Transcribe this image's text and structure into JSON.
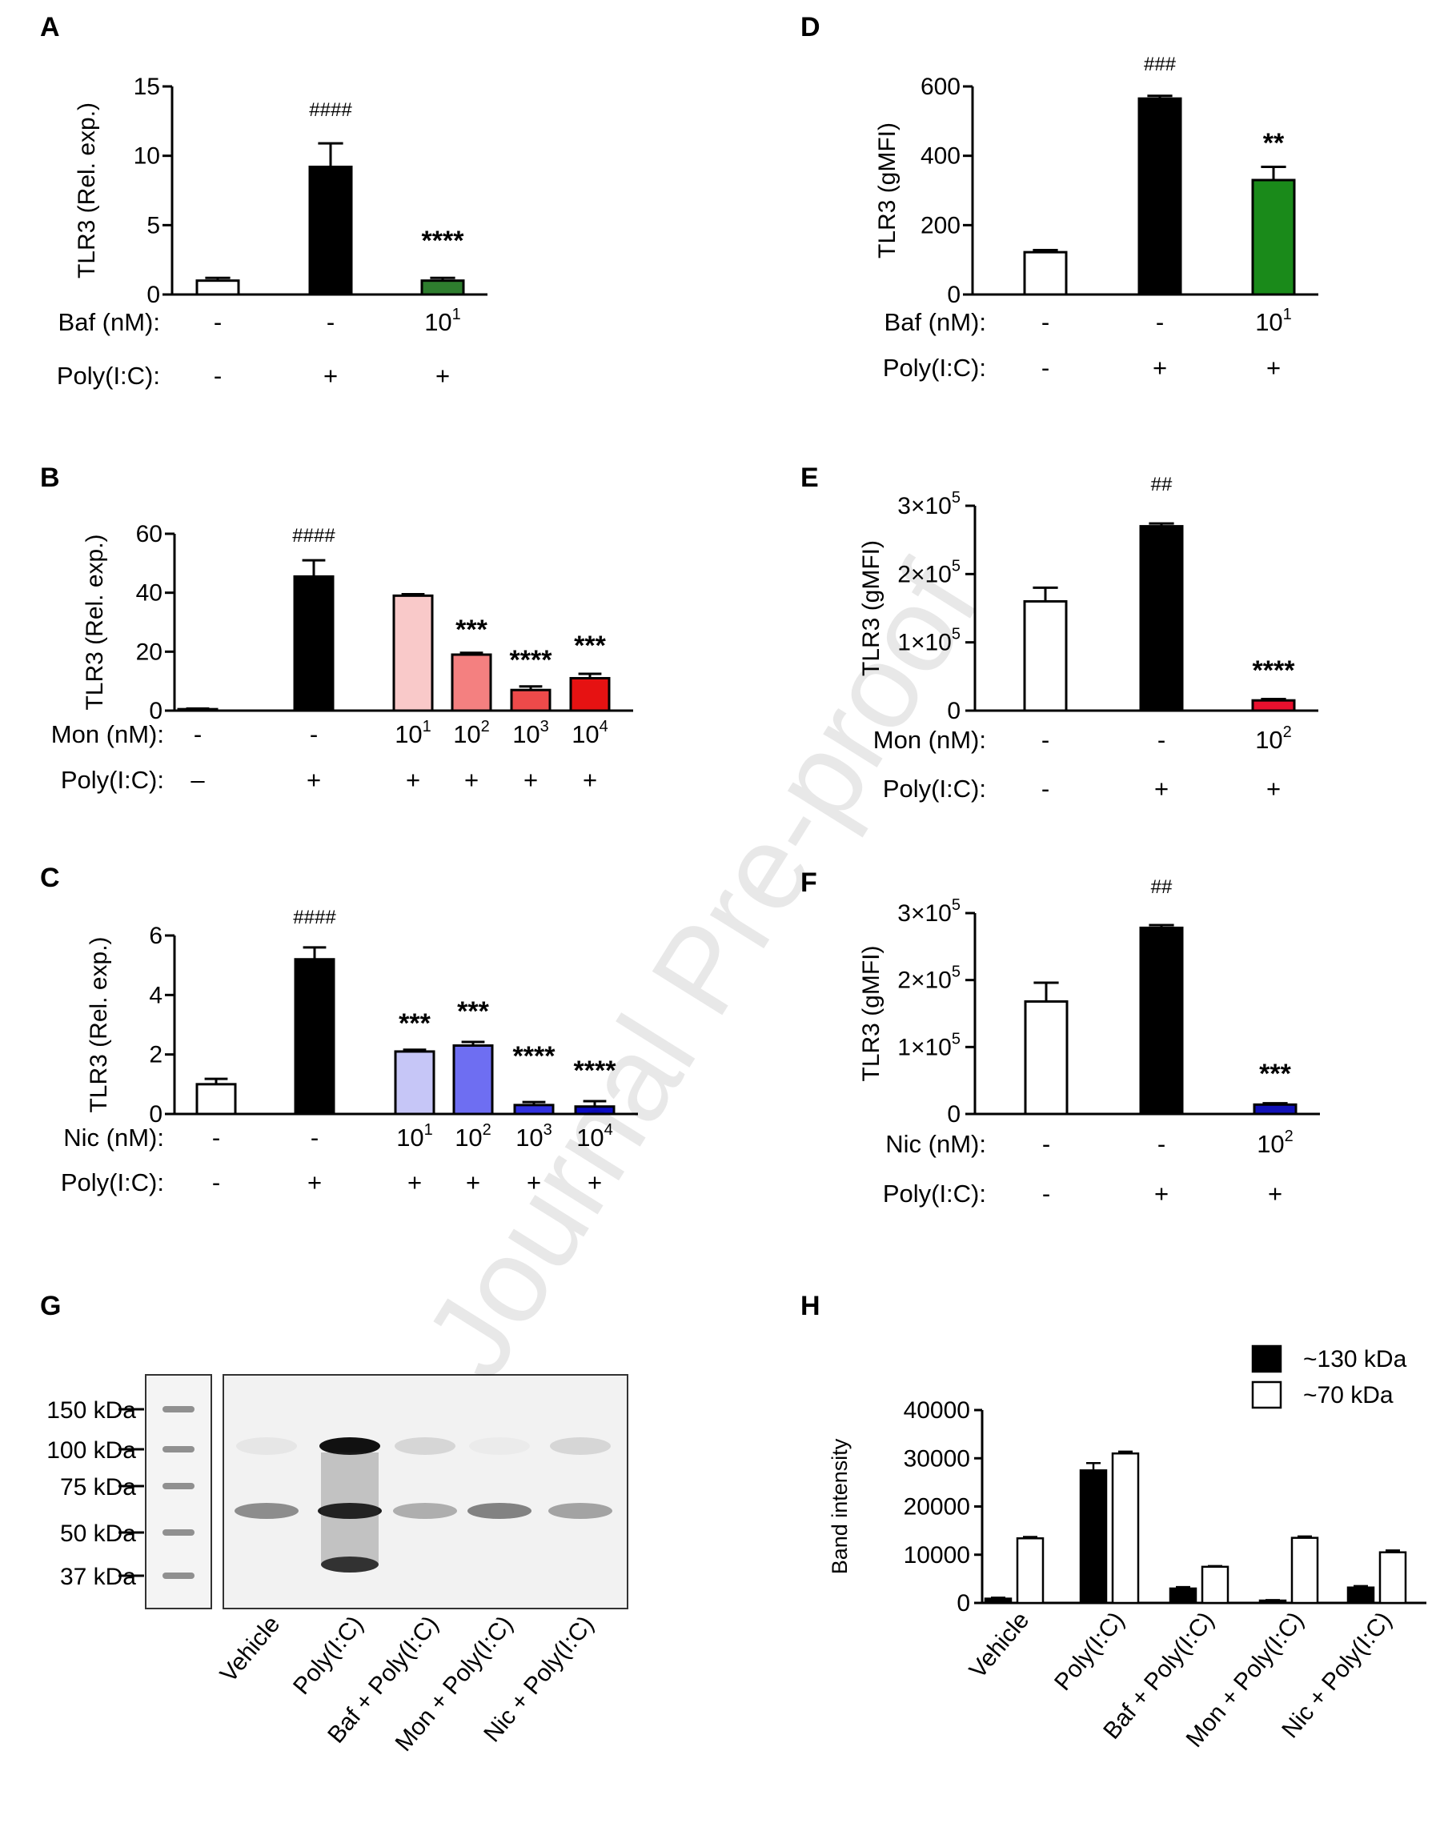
{
  "watermark": "Journal Pre-proof",
  "chart_data": [
    {
      "panel": "A",
      "type": "bar",
      "ylabel": "TLR3 (Rel. exp.)",
      "ylim": [
        0,
        15
      ],
      "yticks": [
        0,
        5,
        10,
        15
      ],
      "values": [
        1.0,
        9.2,
        1.0
      ],
      "errors": [
        0.2,
        1.7,
        0.2
      ],
      "colors": [
        "#ffffff",
        "#000000",
        "#2e7d2e"
      ],
      "annotations": [
        "",
        "####",
        "****"
      ],
      "row_labels": [
        "Baf (nM):",
        "Poly(I:C):"
      ],
      "rows": [
        [
          "-",
          "-",
          "10^1"
        ],
        [
          "-",
          "+",
          "+"
        ]
      ]
    },
    {
      "panel": "B",
      "type": "bar",
      "ylabel": "TLR3 (Rel. exp.)",
      "ylim": [
        0,
        60
      ],
      "yticks": [
        0,
        20,
        40,
        60
      ],
      "values": [
        0.5,
        45.5,
        39,
        19,
        7,
        11
      ],
      "errors": [
        0.2,
        5.5,
        0.5,
        0.6,
        1.2,
        1.5
      ],
      "colors": [
        "#ffffff",
        "#000000",
        "#f9c9c9",
        "#f48080",
        "#ee4a4a",
        "#e61212"
      ],
      "annotations": [
        "",
        "####",
        "",
        "***",
        "****",
        "***"
      ],
      "row_labels": [
        "Mon (nM):",
        "Poly(I:C):"
      ],
      "rows": [
        [
          "-",
          "-",
          "10^1",
          "10^2",
          "10^3",
          "10^4"
        ],
        [
          "–",
          "+",
          "+",
          "+",
          "+",
          "+"
        ]
      ]
    },
    {
      "panel": "C",
      "type": "bar",
      "ylabel": "TLR3 (Rel. exp.)",
      "ylim": [
        0,
        6
      ],
      "yticks": [
        0,
        2,
        4,
        6
      ],
      "values": [
        1.0,
        5.2,
        2.1,
        2.3,
        0.3,
        0.25
      ],
      "errors": [
        0.18,
        0.4,
        0.06,
        0.12,
        0.1,
        0.18
      ],
      "colors": [
        "#ffffff",
        "#000000",
        "#c6c6f7",
        "#6e6ef2",
        "#3232e0",
        "#0c0cc4"
      ],
      "annotations": [
        "",
        "####",
        "***",
        "***",
        "****",
        "****"
      ],
      "row_labels": [
        "Nic (nM):",
        "Poly(I:C):"
      ],
      "rows": [
        [
          "-",
          "-",
          "10^1",
          "10^2",
          "10^3",
          "10^4"
        ],
        [
          "-",
          "+",
          "+",
          "+",
          "+",
          "+"
        ]
      ]
    },
    {
      "panel": "D",
      "type": "bar",
      "ylabel": "TLR3 (gMFI)",
      "ylim": [
        0,
        600
      ],
      "yticks": [
        0,
        200,
        400,
        600
      ],
      "values": [
        122,
        565,
        330
      ],
      "errors": [
        6,
        8,
        38
      ],
      "colors": [
        "#ffffff",
        "#000000",
        "#1a8a1a"
      ],
      "annotations": [
        "",
        "###",
        "**"
      ],
      "row_labels": [
        "Baf (nM):",
        "Poly(I:C):"
      ],
      "rows": [
        [
          "-",
          "-",
          "10^1"
        ],
        [
          "-",
          "+",
          "+"
        ]
      ]
    },
    {
      "panel": "E",
      "type": "bar",
      "ylabel": "TLR3 (gMFI)",
      "ylim": [
        0,
        300000
      ],
      "yticks": [
        0,
        100000,
        200000,
        300000
      ],
      "ytick_labels": [
        "0",
        "1x10^5",
        "2x10^5",
        "3x10^5"
      ],
      "values": [
        160000,
        270000,
        15000
      ],
      "errors": [
        20000,
        4000,
        2000
      ],
      "colors": [
        "#ffffff",
        "#000000",
        "#e8102e"
      ],
      "annotations": [
        "",
        "##",
        "****"
      ],
      "row_labels": [
        "Mon (nM):",
        "Poly(I:C):"
      ],
      "rows": [
        [
          "-",
          "-",
          "10^2"
        ],
        [
          "-",
          "+",
          "+"
        ]
      ]
    },
    {
      "panel": "F",
      "type": "bar",
      "ylabel": "TLR3 (gMFI)",
      "ylim": [
        0,
        300000
      ],
      "yticks": [
        0,
        100000,
        200000,
        300000
      ],
      "ytick_labels": [
        "0",
        "1x10^5",
        "2x10^5",
        "3x10^5"
      ],
      "values": [
        168000,
        278000,
        14000
      ],
      "errors": [
        28000,
        4000,
        2000
      ],
      "colors": [
        "#ffffff",
        "#000000",
        "#1212b8"
      ],
      "annotations": [
        "",
        "##",
        "***"
      ],
      "row_labels": [
        "Nic (nM):",
        "Poly(I:C):"
      ],
      "rows": [
        [
          "-",
          "-",
          "10^2"
        ],
        [
          "-",
          "+",
          "+"
        ]
      ]
    },
    {
      "panel": "H",
      "type": "bar",
      "ylabel": "Band intensity",
      "ylim": [
        0,
        40000
      ],
      "yticks": [
        0,
        10000,
        20000,
        30000,
        40000
      ],
      "categories": [
        "Vehicle",
        "Poly(I:C)",
        "Baf + Poly(I:C)",
        "Mon + Poly(I:C)",
        "Nic + Poly(I:C)"
      ],
      "series": [
        {
          "name": "~130 kDa",
          "color": "#000000",
          "values": [
            900,
            27500,
            3000,
            500,
            3200
          ],
          "errors": [
            200,
            1500,
            300,
            100,
            300
          ]
        },
        {
          "name": "~70 kDa",
          "color": "#ffffff",
          "values": [
            13400,
            31000,
            7500,
            13500,
            10500
          ],
          "errors": [
            300,
            400,
            150,
            300,
            400
          ]
        }
      ]
    }
  ],
  "blot": {
    "panel": "G",
    "markers": [
      "150 kDa",
      "100 kDa",
      "75 kDa",
      "50 kDa",
      "37 kDa"
    ],
    "lanes": [
      "Vehicle",
      "Poly(I:C)",
      "Baf + Poly(I:C)",
      "Mon + Poly(I:C)",
      "Nic + Poly(I:C)"
    ],
    "band_130_intensity": [
      0.05,
      1.0,
      0.12,
      0.03,
      0.12
    ],
    "band_70_intensity": [
      0.45,
      0.95,
      0.3,
      0.5,
      0.35
    ]
  }
}
